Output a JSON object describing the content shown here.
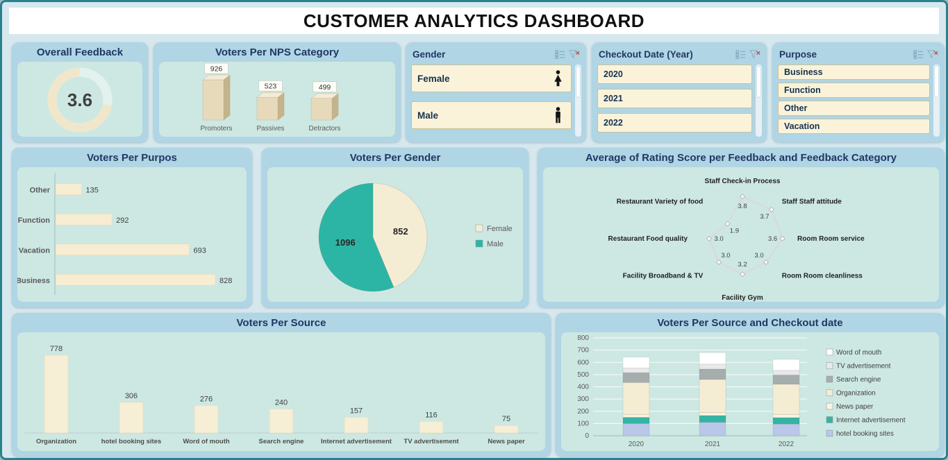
{
  "title": "CUSTOMER ANALYTICS DASHBOARD",
  "theme": {
    "panel_blue": "#b0d5e4",
    "chart_area": "#cde8e2",
    "header_text": "#1f3864",
    "cream": "#f5ecd4",
    "teal": "#2cb5a4",
    "slicer_item_bg": "#faf3da"
  },
  "slicers": [
    {
      "id": "gender",
      "title": "Gender",
      "items": [
        {
          "label": "Female",
          "icon": "female-icon"
        },
        {
          "label": "Male",
          "icon": "male-icon"
        }
      ]
    },
    {
      "id": "checkout",
      "title": "Checkout Date (Year)",
      "items": [
        {
          "label": "2020"
        },
        {
          "label": "2021"
        },
        {
          "label": "2022"
        }
      ]
    },
    {
      "id": "purpose",
      "title": "Purpose",
      "items": [
        {
          "label": "Business"
        },
        {
          "label": "Function"
        },
        {
          "label": "Other"
        },
        {
          "label": "Vacation"
        }
      ]
    }
  ],
  "chart_data": [
    {
      "id": "overall_feedback",
      "type": "gauge",
      "title": "Overall Feedback",
      "value": 3.6,
      "max": 5
    },
    {
      "id": "nps",
      "type": "bar",
      "subtype": "3d-column",
      "title": "Voters Per NPS Category",
      "categories": [
        "Promoters",
        "Passives",
        "Detractors"
      ],
      "values": [
        926,
        523,
        499
      ]
    },
    {
      "id": "voters_per_purpose",
      "type": "bar",
      "orientation": "horizontal",
      "title": "Voters Per Purpos",
      "categories": [
        "Other",
        "Function",
        "Vacation",
        "Business"
      ],
      "values": [
        135,
        292,
        693,
        828
      ]
    },
    {
      "id": "voters_per_gender",
      "type": "pie",
      "title": "Voters Per Gender",
      "categories": [
        "Female",
        "Male"
      ],
      "values": [
        852,
        1096
      ],
      "colors": [
        "#f5ecd4",
        "#2cb5a4"
      ],
      "legend_position": "right"
    },
    {
      "id": "rating_by_feedback",
      "type": "radar",
      "title": "Average of Rating Score per Feedback and Feedback Category",
      "categories": [
        "Staff Check-in Process",
        "Staff Staff attitude",
        "Room Room service",
        "Room Room cleanliness",
        "Facility Gym",
        "Facility Broadband & TV",
        "Restaurant Food quality",
        "Restaurant Variety of food"
      ],
      "values": [
        3.8,
        3.7,
        3.6,
        3.0,
        3.2,
        3.0,
        3.0,
        1.9
      ],
      "max": 4
    },
    {
      "id": "voters_per_source",
      "type": "bar",
      "title": "Voters Per Source",
      "categories": [
        "Organization",
        "hotel booking sites",
        "Word of mouth",
        "Search engine",
        "Internet advertisement",
        "TV advertisement",
        "News paper"
      ],
      "values": [
        778,
        306,
        276,
        240,
        157,
        116,
        75
      ]
    },
    {
      "id": "voters_source_year",
      "type": "bar",
      "subtype": "stacked",
      "title": "Voters Per Source and Checkout date",
      "categories": [
        "2020",
        "2021",
        "2022"
      ],
      "ylim": [
        0,
        800
      ],
      "ytick_step": 100,
      "series": [
        {
          "name": "hotel booking sites",
          "color": "#b9c7e8",
          "values": [
            100,
            110,
            96
          ]
        },
        {
          "name": "Internet advertisement",
          "color": "#35b4a4",
          "values": [
            50,
            55,
            52
          ]
        },
        {
          "name": "News paper",
          "color": "#fbf3e0",
          "values": [
            25,
            25,
            25
          ]
        },
        {
          "name": "Organization",
          "color": "#f5ecd4",
          "values": [
            260,
            270,
            248
          ]
        },
        {
          "name": "Search engine",
          "color": "#a6adad",
          "values": [
            80,
            85,
            75
          ]
        },
        {
          "name": "TV advertisement",
          "color": "#e9e9e9",
          "values": [
            38,
            40,
            38
          ]
        },
        {
          "name": "Word of mouth",
          "color": "#ffffff",
          "values": [
            90,
            95,
            91
          ]
        }
      ],
      "legend": [
        "Word of mouth",
        "TV advertisement",
        "Search engine",
        "Organization",
        "News paper",
        "Internet advertisement",
        "hotel booking sites"
      ]
    }
  ]
}
